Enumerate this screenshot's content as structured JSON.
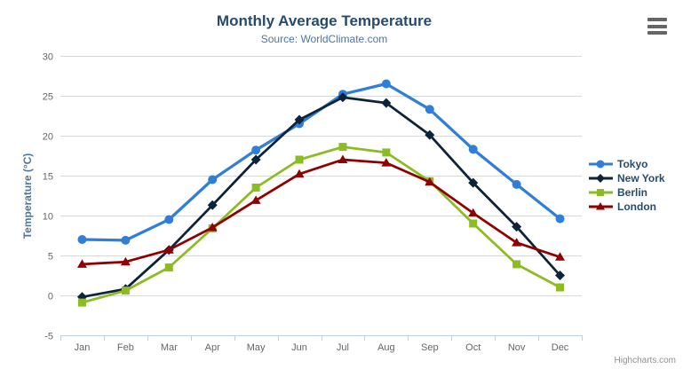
{
  "title": "Monthly Average Temperature",
  "subtitle": "Source: WorldClimate.com",
  "credit": "Highcharts.com",
  "menu_icon": "hamburger-menu-icon",
  "colors": {
    "title": "#274b6d",
    "subtitle": "#4d759e",
    "axis_label": "#666666",
    "axis_line": "#c0d0e0",
    "gridline": "#d8d8d8",
    "credit": "#909090"
  },
  "chart_data": {
    "type": "line",
    "title": "Monthly Average Temperature",
    "subtitle": "Source: WorldClimate.com",
    "xlabel": "",
    "ylabel": "Temperature (°C)",
    "ylim": [
      -5,
      30
    ],
    "yticks": [
      -5,
      0,
      5,
      10,
      15,
      20,
      25,
      30
    ],
    "grid": true,
    "legend_position": "right",
    "categories": [
      "Jan",
      "Feb",
      "Mar",
      "Apr",
      "May",
      "Jun",
      "Jul",
      "Aug",
      "Sep",
      "Oct",
      "Nov",
      "Dec"
    ],
    "series": [
      {
        "name": "Tokyo",
        "color": "#2f7ed8",
        "marker": "circle",
        "values": [
          7.0,
          6.9,
          9.5,
          14.5,
          18.2,
          21.5,
          25.2,
          26.5,
          23.3,
          18.3,
          13.9,
          9.6
        ]
      },
      {
        "name": "New York",
        "color": "#0d233a",
        "marker": "diamond",
        "values": [
          -0.2,
          0.8,
          5.7,
          11.3,
          17.0,
          22.0,
          24.8,
          24.1,
          20.1,
          14.1,
          8.6,
          2.5
        ]
      },
      {
        "name": "Berlin",
        "color": "#8bbc21",
        "marker": "square",
        "values": [
          -0.9,
          0.6,
          3.5,
          8.4,
          13.5,
          17.0,
          18.6,
          17.9,
          14.3,
          9.0,
          3.9,
          1.0
        ]
      },
      {
        "name": "London",
        "color": "#910000",
        "marker": "triangle",
        "values": [
          3.9,
          4.2,
          5.7,
          8.5,
          11.9,
          15.2,
          17.0,
          16.6,
          14.2,
          10.3,
          6.6,
          4.8
        ]
      }
    ]
  }
}
